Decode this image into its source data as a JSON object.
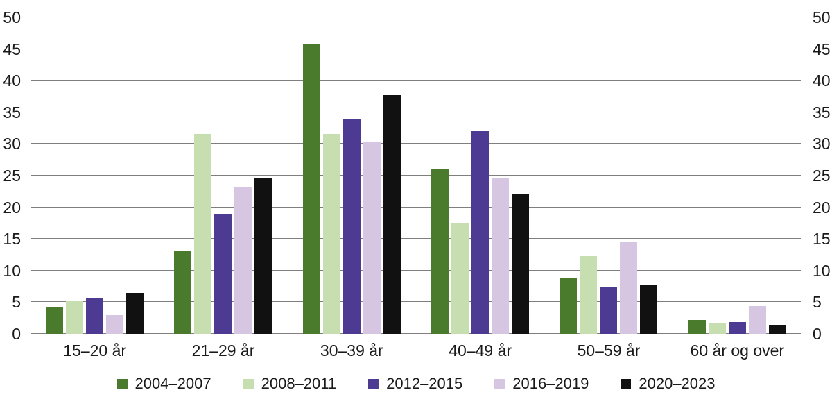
{
  "chart_data": {
    "type": "bar",
    "title": "",
    "xlabel": "",
    "ylabel": "",
    "ylim": [
      0,
      50
    ],
    "yticks": [
      0,
      5,
      10,
      15,
      20,
      25,
      30,
      35,
      40,
      45,
      50
    ],
    "grid": "horizontal",
    "y_axis_sides": [
      "left",
      "right"
    ],
    "legend_position": "bottom",
    "categories": [
      "15–20 år",
      "21–29 år",
      "30–39 år",
      "40–49 år",
      "50–59 år",
      "60 år og over"
    ],
    "series": [
      {
        "name": "2004–2007",
        "color": "#4a7a2c",
        "values": [
          4.3,
          13.1,
          45.7,
          26.1,
          8.8,
          2.2
        ]
      },
      {
        "name": "2008–2011",
        "color": "#c6deb0",
        "values": [
          5.3,
          31.6,
          31.6,
          17.5,
          12.3,
          1.8
        ]
      },
      {
        "name": "2012–2015",
        "color": "#4c3a93",
        "values": [
          5.6,
          18.9,
          33.9,
          32.0,
          7.5,
          1.9
        ]
      },
      {
        "name": "2016–2019",
        "color": "#d6c6e1",
        "values": [
          3.0,
          23.2,
          30.4,
          24.7,
          14.5,
          4.4
        ]
      },
      {
        "name": "2020–2023",
        "color": "#111111",
        "values": [
          6.5,
          24.7,
          37.7,
          22.0,
          7.8,
          1.3
        ]
      }
    ]
  },
  "style": {
    "gridline_color": "#7f7f7f",
    "text_color": "#1a1a1a",
    "background": "#ffffff"
  }
}
